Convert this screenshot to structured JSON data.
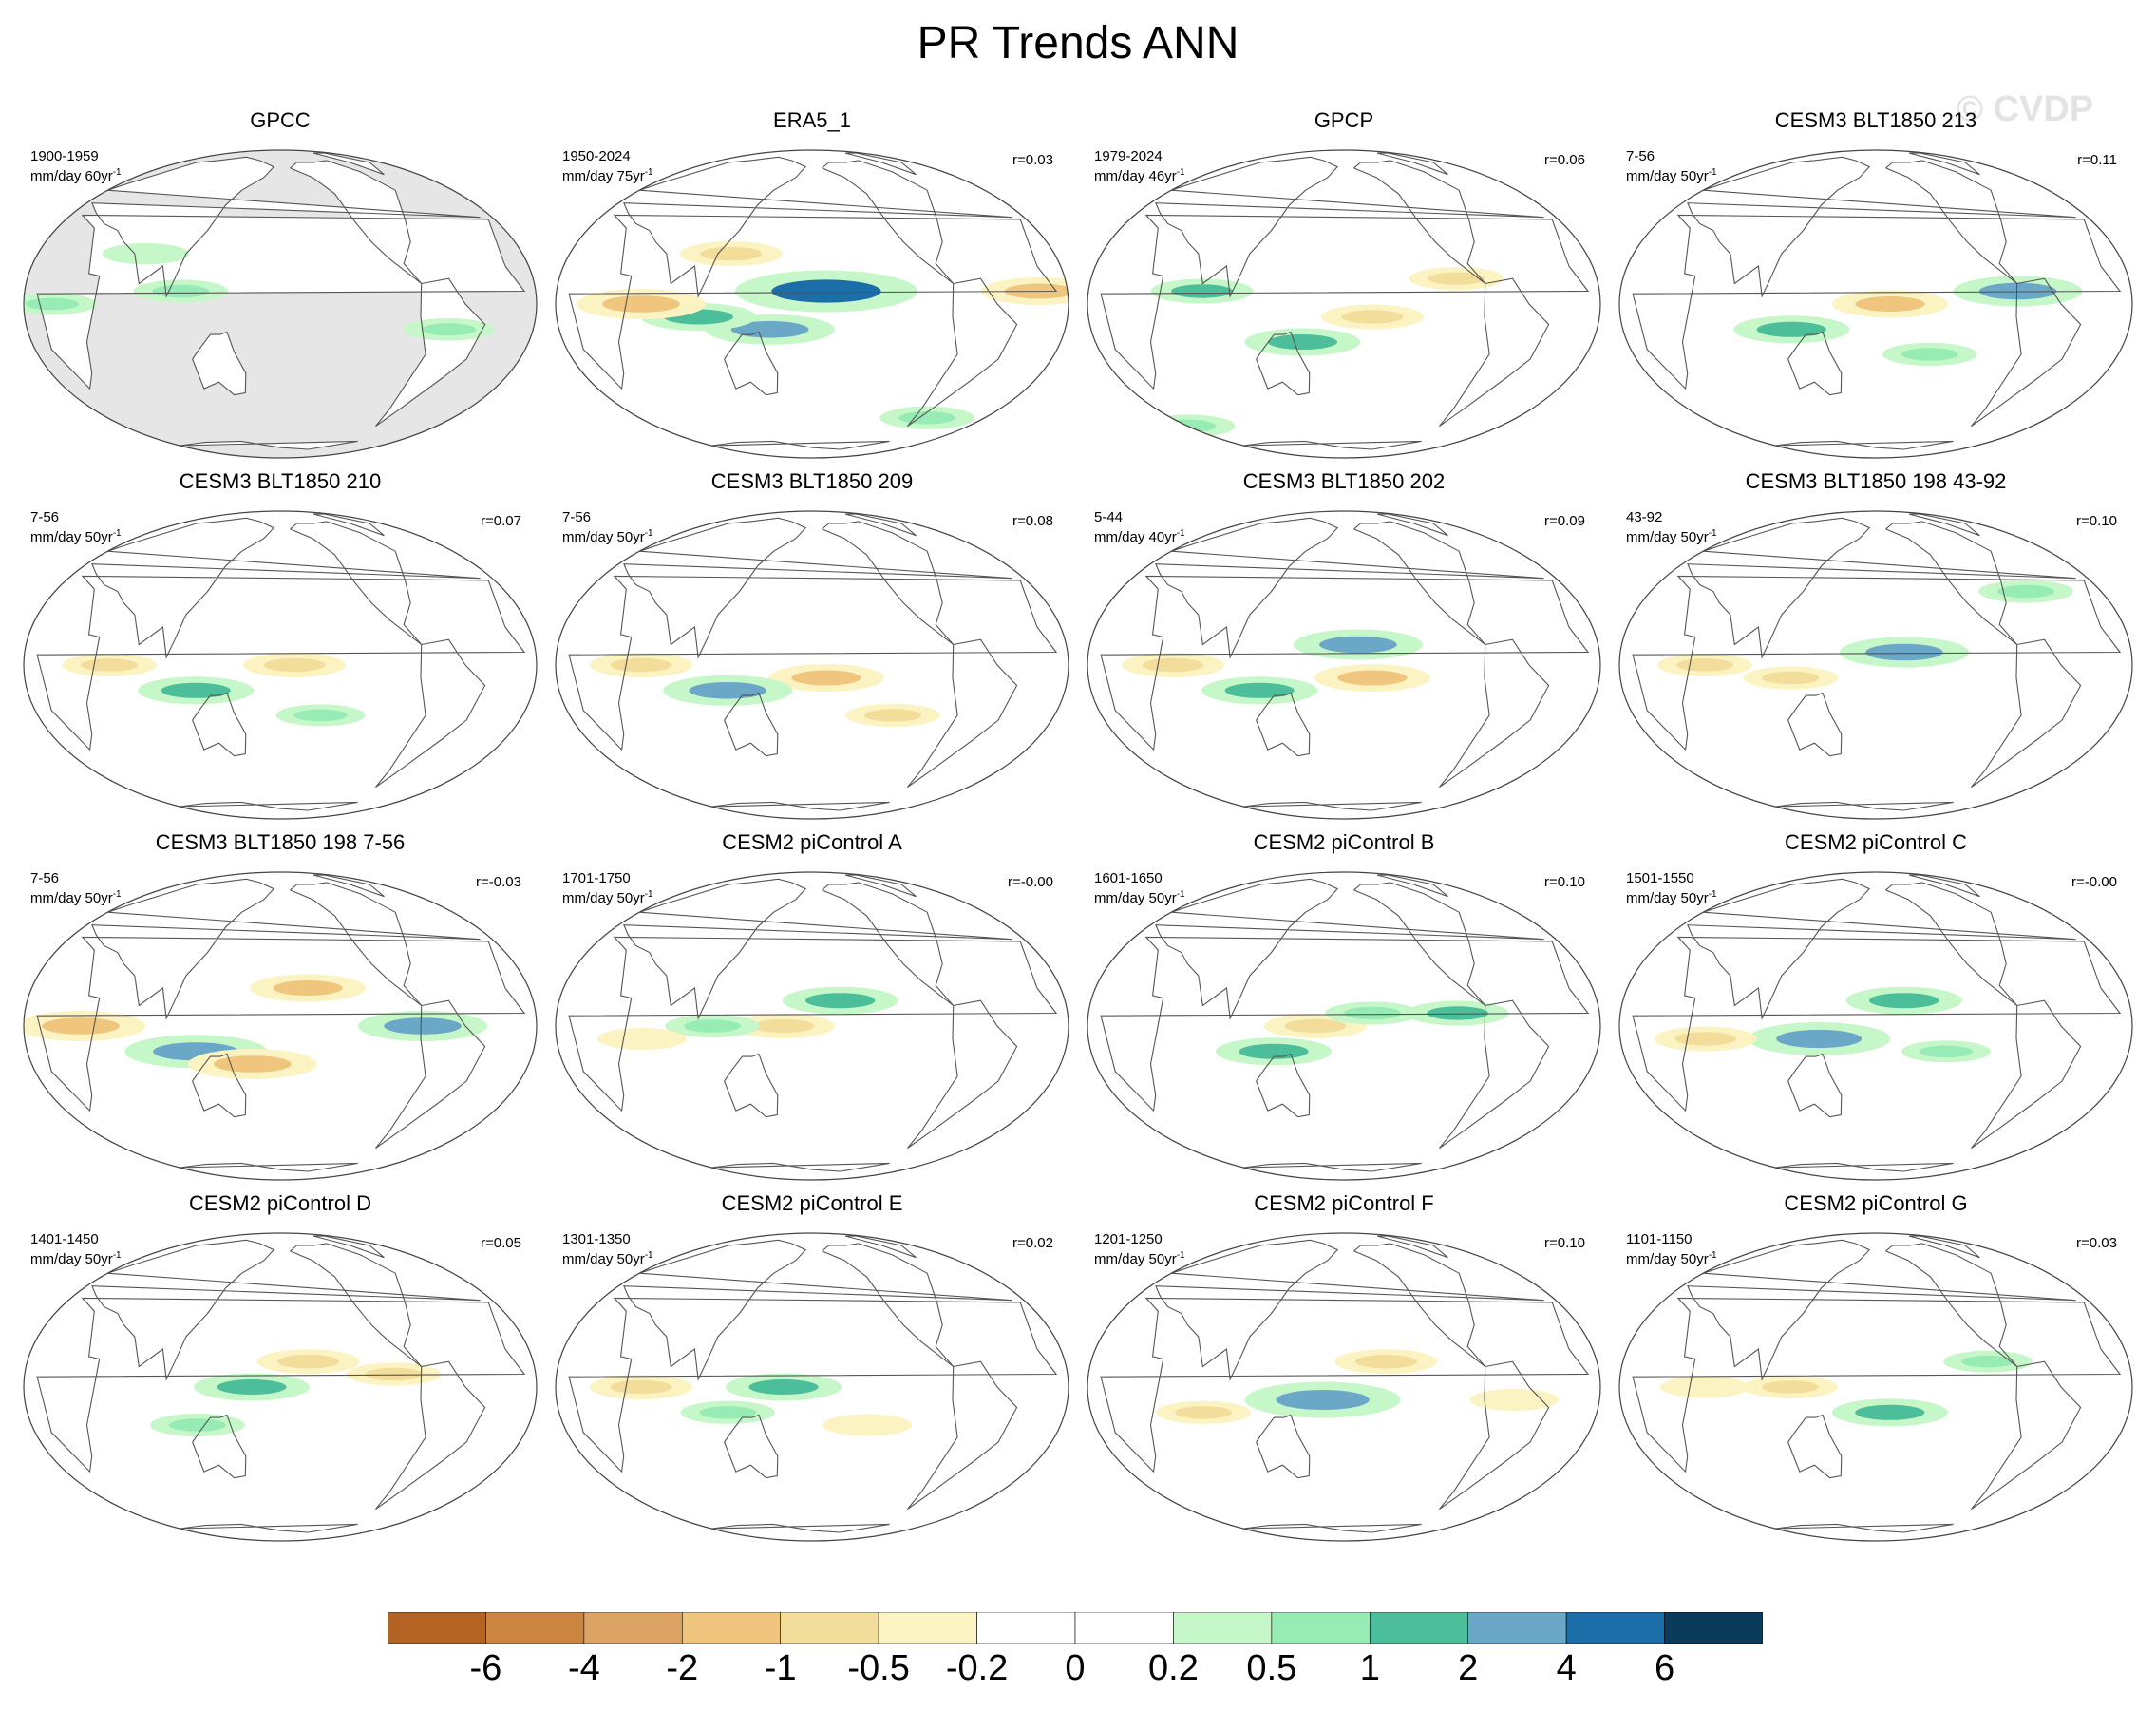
{
  "title": "PR Trends ANN",
  "watermark": "© CVDP",
  "units_label": "mm/day",
  "panels": [
    {
      "title": "GPCC",
      "period": "1900-1959",
      "units": "mm/day 60yr",
      "corr": "",
      "land_only": true,
      "anomalies": [
        {
          "lon": 110,
          "lat": 5,
          "value": 0.7
        },
        {
          "lon": -60,
          "lat": -10,
          "value": 0.6
        },
        {
          "lon": 20,
          "lat": 0,
          "value": 0.5
        },
        {
          "lon": 80,
          "lat": 20,
          "value": 0.4
        }
      ]
    },
    {
      "title": "ERA5_1",
      "period": "1950-2024",
      "units": "mm/day 75yr",
      "corr": "r=0.03",
      "land_only": false,
      "anomalies": [
        {
          "lon": -170,
          "lat": 5,
          "value": 4
        },
        {
          "lon": 150,
          "lat": -10,
          "value": 2
        },
        {
          "lon": 100,
          "lat": -5,
          "value": 1.5
        },
        {
          "lon": -60,
          "lat": -50,
          "value": 0.7
        },
        {
          "lon": 60,
          "lat": 0,
          "value": -2
        },
        {
          "lon": -20,
          "lat": 5,
          "value": -1.5
        },
        {
          "lon": 120,
          "lat": 20,
          "value": -1
        }
      ]
    },
    {
      "title": "GPCP",
      "period": "1979-2024",
      "units": "mm/day 46yr",
      "corr": "r=0.06",
      "land_only": false,
      "anomalies": [
        {
          "lon": 150,
          "lat": -15,
          "value": 1.5
        },
        {
          "lon": 80,
          "lat": 5,
          "value": 1
        },
        {
          "lon": -160,
          "lat": -5,
          "value": -1
        },
        {
          "lon": -100,
          "lat": 10,
          "value": -0.7
        },
        {
          "lon": 0,
          "lat": -55,
          "value": 0.7
        }
      ]
    },
    {
      "title": "CESM3 BLT1850 213",
      "period": "7-56",
      "units": "mm/day 50yr",
      "corr": "r=0.11",
      "land_only": false,
      "anomalies": [
        {
          "lon": -170,
          "lat": 0,
          "value": -1.5
        },
        {
          "lon": 120,
          "lat": -10,
          "value": 1.5
        },
        {
          "lon": -80,
          "lat": 5,
          "value": 2
        },
        {
          "lon": -140,
          "lat": -20,
          "value": 0.7
        }
      ]
    },
    {
      "title": "CESM3 BLT1850 210",
      "period": "7-56",
      "units": "mm/day 50yr",
      "corr": "r=0.07",
      "land_only": false,
      "anomalies": [
        {
          "lon": -170,
          "lat": 0,
          "value": -1
        },
        {
          "lon": 120,
          "lat": -10,
          "value": 1.5
        },
        {
          "lon": 60,
          "lat": 0,
          "value": -0.7
        },
        {
          "lon": -150,
          "lat": -20,
          "value": 0.5
        }
      ]
    },
    {
      "title": "CESM3 BLT1850 209",
      "period": "7-56",
      "units": "mm/day 50yr",
      "corr": "r=0.08",
      "land_only": false,
      "anomalies": [
        {
          "lon": -170,
          "lat": -5,
          "value": -1.5
        },
        {
          "lon": 120,
          "lat": -10,
          "value": 2
        },
        {
          "lon": 60,
          "lat": 0,
          "value": -1
        },
        {
          "lon": -120,
          "lat": -20,
          "value": -0.7
        }
      ]
    },
    {
      "title": "CESM3 BLT1850 202",
      "period": "5-44",
      "units": "mm/day 40yr",
      "corr": "r=0.09",
      "land_only": false,
      "anomalies": [
        {
          "lon": -160,
          "lat": -5,
          "value": -1.5
        },
        {
          "lon": -170,
          "lat": 8,
          "value": 2
        },
        {
          "lon": 120,
          "lat": -10,
          "value": 1.5
        },
        {
          "lon": 60,
          "lat": 0,
          "value": -1
        }
      ]
    },
    {
      "title": "CESM3 BLT1850 198 43-92",
      "period": "43-92",
      "units": "mm/day 50yr",
      "corr": "r=0.10",
      "land_only": false,
      "anomalies": [
        {
          "lon": -160,
          "lat": 5,
          "value": 2
        },
        {
          "lon": 120,
          "lat": -5,
          "value": -0.7
        },
        {
          "lon": 60,
          "lat": 0,
          "value": -0.7
        },
        {
          "lon": -60,
          "lat": 30,
          "value": 0.7
        }
      ]
    },
    {
      "title": "CESM3 BLT1850 198 7-56",
      "period": "7-56",
      "units": "mm/day 50yr",
      "corr": "r=-0.03",
      "land_only": false,
      "anomalies": [
        {
          "lon": 120,
          "lat": -10,
          "value": 2.5
        },
        {
          "lon": 160,
          "lat": -15,
          "value": -2
        },
        {
          "lon": -160,
          "lat": 15,
          "value": -1.5
        },
        {
          "lon": -80,
          "lat": 0,
          "value": 2
        },
        {
          "lon": 40,
          "lat": 0,
          "value": -2
        }
      ]
    },
    {
      "title": "CESM2 piControl A",
      "period": "1701-1750",
      "units": "mm/day 50yr",
      "corr": "r=-0.00",
      "land_only": false,
      "anomalies": [
        {
          "lon": -160,
          "lat": 10,
          "value": 1.5
        },
        {
          "lon": 160,
          "lat": 0,
          "value": -1
        },
        {
          "lon": 110,
          "lat": 0,
          "value": 0.7
        },
        {
          "lon": 60,
          "lat": -5,
          "value": -0.5
        }
      ]
    },
    {
      "title": "CESM2 piControl B",
      "period": "1601-1650",
      "units": "mm/day 50yr",
      "corr": "r=0.10",
      "land_only": false,
      "anomalies": [
        {
          "lon": 130,
          "lat": -10,
          "value": 1.5
        },
        {
          "lon": 160,
          "lat": 0,
          "value": -1
        },
        {
          "lon": -160,
          "lat": 5,
          "value": 0.7
        },
        {
          "lon": -100,
          "lat": 5,
          "value": 1
        }
      ]
    },
    {
      "title": "CESM2 piControl C",
      "period": "1501-1550",
      "units": "mm/day 50yr",
      "corr": "r=-0.00",
      "land_only": false,
      "anomalies": [
        {
          "lon": 140,
          "lat": -5,
          "value": 2.5
        },
        {
          "lon": -160,
          "lat": 10,
          "value": 1.5
        },
        {
          "lon": 60,
          "lat": -5,
          "value": -1
        },
        {
          "lon": -130,
          "lat": -10,
          "value": 0.5
        }
      ]
    },
    {
      "title": "CESM2 piControl D",
      "period": "1401-1450",
      "units": "mm/day 50yr",
      "corr": "r=0.05",
      "land_only": false,
      "anomalies": [
        {
          "lon": 160,
          "lat": 0,
          "value": 1.5
        },
        {
          "lon": -160,
          "lat": 10,
          "value": -1
        },
        {
          "lon": 120,
          "lat": -15,
          "value": 0.7
        },
        {
          "lon": -100,
          "lat": 5,
          "value": -0.7
        }
      ]
    },
    {
      "title": "CESM2 piControl E",
      "period": "1301-1350",
      "units": "mm/day 50yr",
      "corr": "r=0.02",
      "land_only": false,
      "anomalies": [
        {
          "lon": 160,
          "lat": 0,
          "value": 1.5
        },
        {
          "lon": 60,
          "lat": 0,
          "value": -1
        },
        {
          "lon": 120,
          "lat": -10,
          "value": 0.7
        },
        {
          "lon": -140,
          "lat": -15,
          "value": -0.5
        }
      ]
    },
    {
      "title": "CESM2 piControl F",
      "period": "1201-1250",
      "units": "mm/day 50yr",
      "corr": "r=0.10",
      "land_only": false,
      "anomalies": [
        {
          "lon": 165,
          "lat": -5,
          "value": 3
        },
        {
          "lon": -150,
          "lat": 10,
          "value": -1
        },
        {
          "lon": 80,
          "lat": -10,
          "value": -0.7
        },
        {
          "lon": -60,
          "lat": -5,
          "value": -0.5
        }
      ]
    },
    {
      "title": "CESM2 piControl G",
      "period": "1101-1150",
      "units": "mm/day 50yr",
      "corr": "r=0.03",
      "land_only": false,
      "anomalies": [
        {
          "lon": -170,
          "lat": -10,
          "value": 1.5
        },
        {
          "lon": 120,
          "lat": 0,
          "value": -0.7
        },
        {
          "lon": 60,
          "lat": 0,
          "value": -0.5
        },
        {
          "lon": -100,
          "lat": 10,
          "value": 0.5
        }
      ]
    }
  ],
  "colorbar": {
    "levels": [
      -6,
      -4,
      -2,
      -1,
      -0.5,
      -0.2,
      0,
      0.2,
      0.5,
      1,
      2,
      4,
      6
    ],
    "tick_labels": [
      "-6",
      "-4",
      "-2",
      "-1",
      "-0.5",
      "-0.2",
      "0",
      "0.2",
      "0.5",
      "1",
      "2",
      "4",
      "6"
    ],
    "colors": [
      "#b36425",
      "#cc8540",
      "#dba464",
      "#f0c57e",
      "#f3dd9a",
      "#fbf3c1",
      "#ffffff",
      "#ffffff",
      "#c6f7c8",
      "#97ebb4",
      "#4cbe9a",
      "#6ba7c6",
      "#1b6ea8",
      "#0b3b5a"
    ],
    "missing_color": "#e6e6e6"
  }
}
